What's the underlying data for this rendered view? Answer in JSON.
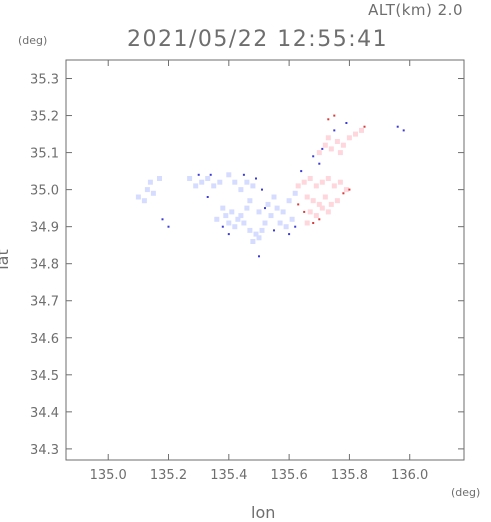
{
  "header": {
    "alt_label": "ALT(km) 2.0",
    "timestamp": "2021/05/22 12:55:41"
  },
  "axes": {
    "x_unit": "(deg)",
    "y_unit": "(deg)"
  },
  "chart_data": {
    "type": "scatter",
    "title": "2021/05/22 12:55:41",
    "xlabel": "lon",
    "ylabel": "lat",
    "xlim": [
      134.86,
      136.18
    ],
    "ylim": [
      34.27,
      35.35
    ],
    "x_ticks": [
      "135.0",
      "135.2",
      "135.4",
      "135.6",
      "135.8",
      "136.0"
    ],
    "y_ticks": [
      "34.3",
      "34.4",
      "34.5",
      "34.6",
      "34.7",
      "34.8",
      "34.9",
      "35.0",
      "35.1",
      "35.2",
      "35.3"
    ],
    "grid": false,
    "colors": {
      "cool": "#d6dcff",
      "warm": "#ffd6dc",
      "edge_blue": "#3a3ad8",
      "edge_red": "#d83a3a",
      "axis": "#6e6e6e"
    },
    "series": [
      {
        "color_key": "cool",
        "points": [
          [
            135.1,
            34.98
          ],
          [
            135.12,
            34.97
          ],
          [
            135.13,
            35.0
          ],
          [
            135.15,
            34.99
          ],
          [
            135.14,
            35.02
          ],
          [
            135.17,
            35.03
          ],
          [
            135.27,
            35.03
          ],
          [
            135.29,
            35.01
          ],
          [
            135.31,
            35.02
          ],
          [
            135.33,
            35.03
          ],
          [
            135.35,
            35.01
          ],
          [
            135.37,
            35.02
          ],
          [
            135.4,
            35.04
          ],
          [
            135.42,
            35.02
          ],
          [
            135.44,
            35.0
          ],
          [
            135.46,
            35.02
          ],
          [
            135.48,
            35.01
          ],
          [
            135.38,
            34.95
          ],
          [
            135.39,
            34.93
          ],
          [
            135.41,
            34.94
          ],
          [
            135.43,
            34.92
          ],
          [
            135.4,
            34.91
          ],
          [
            135.42,
            34.9
          ],
          [
            135.45,
            34.91
          ],
          [
            135.44,
            34.93
          ],
          [
            135.46,
            34.95
          ],
          [
            135.47,
            34.89
          ],
          [
            135.49,
            34.88
          ],
          [
            135.48,
            34.86
          ],
          [
            135.5,
            34.87
          ],
          [
            135.51,
            34.89
          ],
          [
            135.52,
            34.91
          ],
          [
            135.54,
            34.93
          ],
          [
            135.53,
            34.96
          ],
          [
            135.55,
            34.98
          ],
          [
            135.56,
            34.95
          ],
          [
            135.58,
            34.94
          ],
          [
            135.57,
            34.91
          ],
          [
            135.59,
            34.9
          ],
          [
            135.61,
            34.92
          ],
          [
            135.6,
            34.97
          ],
          [
            135.62,
            34.99
          ],
          [
            135.36,
            34.92
          ],
          [
            135.47,
            34.97
          ],
          [
            135.5,
            34.94
          ]
        ]
      },
      {
        "color_key": "warm",
        "points": [
          [
            135.63,
            35.01
          ],
          [
            135.65,
            35.02
          ],
          [
            135.67,
            35.03
          ],
          [
            135.69,
            35.01
          ],
          [
            135.71,
            35.02
          ],
          [
            135.73,
            35.03
          ],
          [
            135.75,
            35.01
          ],
          [
            135.77,
            35.02
          ],
          [
            135.79,
            35.0
          ],
          [
            135.66,
            34.98
          ],
          [
            135.68,
            34.97
          ],
          [
            135.7,
            34.96
          ],
          [
            135.72,
            34.98
          ],
          [
            135.74,
            34.96
          ],
          [
            135.76,
            34.97
          ],
          [
            135.67,
            34.94
          ],
          [
            135.69,
            34.93
          ],
          [
            135.71,
            34.95
          ],
          [
            135.73,
            34.94
          ],
          [
            135.66,
            34.91
          ],
          [
            135.7,
            35.1
          ],
          [
            135.72,
            35.12
          ],
          [
            135.74,
            35.11
          ],
          [
            135.76,
            35.13
          ],
          [
            135.78,
            35.12
          ],
          [
            135.8,
            35.14
          ],
          [
            135.82,
            35.15
          ],
          [
            135.84,
            35.16
          ],
          [
            135.73,
            35.14
          ],
          [
            135.77,
            35.1
          ]
        ]
      },
      {
        "color_key": "edge_blue",
        "points": [
          [
            135.18,
            34.92
          ],
          [
            135.2,
            34.9
          ],
          [
            135.3,
            35.04
          ],
          [
            135.34,
            35.04
          ],
          [
            135.45,
            35.04
          ],
          [
            135.49,
            35.03
          ],
          [
            135.51,
            35.0
          ],
          [
            135.52,
            34.95
          ],
          [
            135.55,
            34.89
          ],
          [
            135.6,
            34.88
          ],
          [
            135.62,
            34.9
          ],
          [
            135.4,
            34.88
          ],
          [
            135.38,
            34.9
          ],
          [
            135.5,
            34.82
          ],
          [
            135.64,
            35.05
          ],
          [
            135.68,
            35.09
          ],
          [
            135.71,
            35.11
          ],
          [
            135.75,
            35.16
          ],
          [
            135.79,
            35.18
          ],
          [
            135.98,
            35.16
          ],
          [
            135.96,
            35.17
          ],
          [
            135.7,
            35.07
          ],
          [
            135.33,
            34.98
          ]
        ]
      },
      {
        "color_key": "edge_red",
        "points": [
          [
            135.68,
            34.91
          ],
          [
            135.7,
            34.92
          ],
          [
            135.78,
            34.99
          ],
          [
            135.8,
            35.0
          ],
          [
            135.75,
            35.2
          ],
          [
            135.73,
            35.19
          ],
          [
            135.85,
            35.17
          ],
          [
            135.63,
            34.96
          ],
          [
            135.65,
            34.94
          ]
        ]
      }
    ]
  }
}
